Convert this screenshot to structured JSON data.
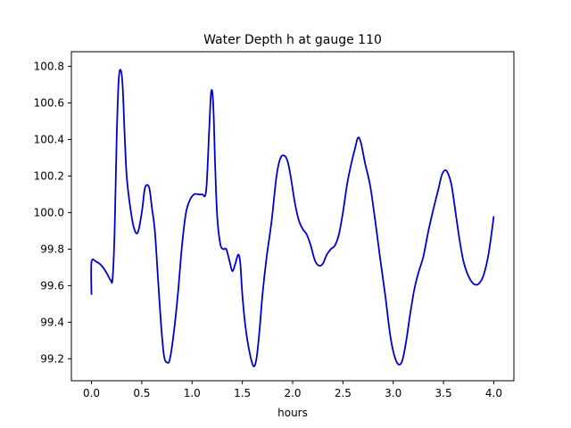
{
  "chart_data": {
    "type": "line",
    "title": "Water Depth h at gauge 110",
    "xlabel": "hours",
    "ylabel": "",
    "xlim": [
      -0.2,
      4.2
    ],
    "ylim": [
      99.08,
      100.88
    ],
    "xticks": [
      0.0,
      0.5,
      1.0,
      1.5,
      2.0,
      2.5,
      3.0,
      3.5,
      4.0
    ],
    "xtick_labels": [
      "0.0",
      "0.5",
      "1.0",
      "1.5",
      "2.0",
      "2.5",
      "3.0",
      "3.5",
      "4.0"
    ],
    "yticks": [
      99.2,
      99.4,
      99.6,
      99.8,
      100.0,
      100.2,
      100.4,
      100.6,
      100.8
    ],
    "ytick_labels": [
      "99.2",
      "99.4",
      "99.6",
      "99.8",
      "100.0",
      "100.2",
      "100.4",
      "100.6",
      "100.8"
    ],
    "grid": false,
    "series": [
      {
        "color": "#0000cc",
        "x": [
          0.0,
          0.0,
          0.05,
          0.1,
          0.15,
          0.19,
          0.21,
          0.23,
          0.25,
          0.27,
          0.29,
          0.31,
          0.33,
          0.35,
          0.38,
          0.42,
          0.46,
          0.5,
          0.53,
          0.56,
          0.58,
          0.6,
          0.63,
          0.66,
          0.69,
          0.72,
          0.75,
          0.78,
          0.82,
          0.86,
          0.9,
          0.94,
          0.98,
          1.02,
          1.06,
          1.1,
          1.14,
          1.17,
          1.19,
          1.21,
          1.23,
          1.25,
          1.28,
          1.31,
          1.34,
          1.37,
          1.4,
          1.43,
          1.46,
          1.48,
          1.5,
          1.53,
          1.57,
          1.61,
          1.64,
          1.67,
          1.7,
          1.74,
          1.79,
          1.84,
          1.88,
          1.92,
          1.95,
          1.98,
          2.02,
          2.06,
          2.1,
          2.14,
          2.18,
          2.22,
          2.26,
          2.3,
          2.34,
          2.38,
          2.42,
          2.46,
          2.5,
          2.54,
          2.58,
          2.62,
          2.65,
          2.68,
          2.72,
          2.77,
          2.82,
          2.87,
          2.92,
          2.97,
          3.01,
          3.05,
          3.09,
          3.13,
          3.17,
          3.21,
          3.25,
          3.3,
          3.35,
          3.4,
          3.45,
          3.48,
          3.51,
          3.54,
          3.58,
          3.62,
          3.66,
          3.7,
          3.75,
          3.8,
          3.85,
          3.9,
          3.95,
          4.0
        ],
        "y": [
          99.55,
          99.73,
          99.73,
          99.71,
          99.67,
          99.63,
          99.64,
          99.9,
          100.4,
          100.72,
          100.78,
          100.69,
          100.42,
          100.2,
          100.05,
          99.92,
          99.89,
          100.0,
          100.13,
          100.15,
          100.12,
          100.03,
          99.9,
          99.65,
          99.4,
          99.22,
          99.18,
          99.2,
          99.35,
          99.56,
          99.82,
          100.0,
          100.07,
          100.1,
          100.1,
          100.1,
          100.12,
          100.45,
          100.66,
          100.6,
          100.25,
          99.98,
          99.83,
          99.8,
          99.8,
          99.74,
          99.68,
          99.72,
          99.77,
          99.72,
          99.55,
          99.38,
          99.24,
          99.16,
          99.2,
          99.35,
          99.55,
          99.75,
          99.95,
          100.2,
          100.3,
          100.31,
          100.28,
          100.2,
          100.06,
          99.96,
          99.91,
          99.88,
          99.82,
          99.74,
          99.71,
          99.72,
          99.77,
          99.8,
          99.82,
          99.88,
          100.0,
          100.15,
          100.26,
          100.35,
          100.41,
          100.38,
          100.27,
          100.15,
          99.96,
          99.75,
          99.55,
          99.33,
          99.22,
          99.17,
          99.19,
          99.3,
          99.45,
          99.58,
          99.67,
          99.76,
          99.9,
          100.02,
          100.13,
          100.2,
          100.23,
          100.22,
          100.15,
          100.0,
          99.85,
          99.73,
          99.65,
          99.61,
          99.61,
          99.66,
          99.78,
          99.98
        ]
      }
    ]
  }
}
